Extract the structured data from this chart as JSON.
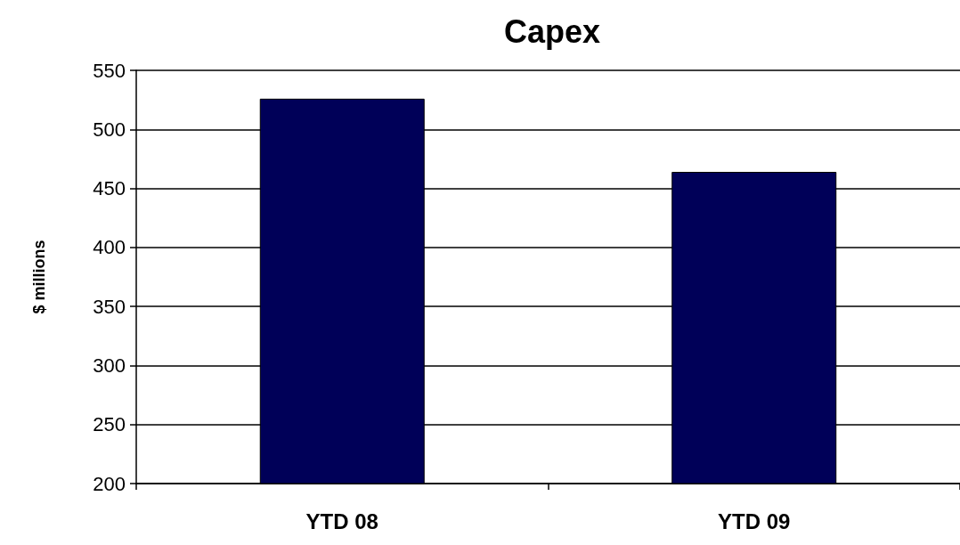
{
  "chart_data": {
    "type": "bar",
    "title": "Capex",
    "ylabel": "$ millions",
    "categories": [
      "YTD 08",
      "YTD 09"
    ],
    "values": [
      526,
      464
    ],
    "color": "#000058",
    "ylim": [
      200,
      550
    ],
    "yticks": [
      200,
      250,
      300,
      350,
      400,
      450,
      500,
      550
    ],
    "grid": "y"
  }
}
